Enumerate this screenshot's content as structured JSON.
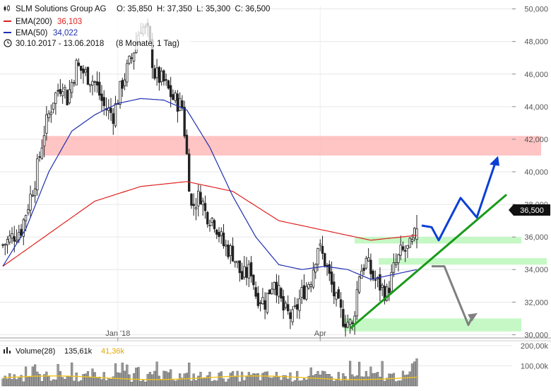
{
  "header": {
    "title": "SLM Solutions Group AG",
    "ohlc": "O: 35,850  H: 37,350  L: 35,300  C: 36,500",
    "ema200_label": "EMA(200)",
    "ema200_value": "36,103",
    "ema50_label": "EMA(50)",
    "ema50_value": "34,022",
    "range_label": "30.10.2017 - 13.06.2018",
    "range_detail": "(8 Monate, 1 Tag)"
  },
  "volume_legend": {
    "label": "Volume(28)",
    "value": "135,61k",
    "ma_value": "41,36k"
  },
  "price_badge": "36,500",
  "colors": {
    "candle": "#222222",
    "ema200": "#e02020",
    "ema50": "#1f2fb0",
    "resistance_zone": "#ffb0b0",
    "support_zone": "#b2f5b2",
    "trend_line": "#1a9a1a",
    "bull_path": "#0a3fd6",
    "bear_path": "#808080",
    "volume_bar": "#9a9a9a",
    "volume_ma": "#f1c21b"
  },
  "chart_data": {
    "type": "candlestick",
    "title": "SLM Solutions Group AG",
    "x_ticks": [
      "Jan '18",
      "Apr"
    ],
    "y_ticks": [
      "30,000",
      "32,000",
      "34,000",
      "36,000",
      "38,000",
      "40,000",
      "42,000",
      "44,000",
      "46,000",
      "48,000",
      "50,000"
    ],
    "volume_ticks": [
      "200,00k",
      "100,00k"
    ],
    "ylim": [
      29.8,
      50.2
    ],
    "period": "30.10.2017 - 13.06.2018",
    "last_close": 36.5,
    "close_path": [
      [
        0,
        35.5
      ],
      [
        8,
        36.5
      ],
      [
        14,
        39.5
      ],
      [
        18,
        42.5
      ],
      [
        22,
        44.5
      ],
      [
        26,
        45.5
      ],
      [
        28,
        44.5
      ],
      [
        32,
        46.5
      ],
      [
        36,
        46.0
      ],
      [
        40,
        45.5
      ],
      [
        44,
        44.0
      ],
      [
        48,
        43.5
      ],
      [
        52,
        45.5
      ],
      [
        56,
        47.0
      ],
      [
        60,
        49.0
      ],
      [
        63,
        48.5
      ],
      [
        66,
        46.0
      ],
      [
        70,
        45.5
      ],
      [
        74,
        44.5
      ],
      [
        78,
        44.0
      ],
      [
        80,
        41.0
      ],
      [
        82,
        37.8
      ],
      [
        86,
        38.6
      ],
      [
        88,
        37.5
      ],
      [
        92,
        37.0
      ],
      [
        96,
        35.5
      ],
      [
        100,
        35.0
      ],
      [
        104,
        33.5
      ],
      [
        108,
        34.0
      ],
      [
        110,
        32.5
      ],
      [
        114,
        32.0
      ],
      [
        118,
        33.5
      ],
      [
        122,
        31.5
      ],
      [
        126,
        31.0
      ],
      [
        130,
        32.5
      ],
      [
        134,
        33.5
      ],
      [
        137,
        35.5
      ],
      [
        140,
        34.5
      ],
      [
        142,
        33.5
      ],
      [
        145,
        32.0
      ],
      [
        148,
        31.0
      ],
      [
        150,
        30.8
      ],
      [
        152,
        30.5
      ],
      [
        155,
        33.8
      ],
      [
        158,
        34.5
      ],
      [
        161,
        33.5
      ],
      [
        164,
        33.0
      ],
      [
        167,
        32.5
      ],
      [
        170,
        34.0
      ],
      [
        173,
        35.0
      ],
      [
        176,
        35.2
      ],
      [
        178,
        35.5
      ],
      [
        180,
        36.5
      ]
    ],
    "ema200_path": [
      [
        0,
        34.2
      ],
      [
        20,
        36.2
      ],
      [
        40,
        38.2
      ],
      [
        60,
        39.1
      ],
      [
        80,
        39.4
      ],
      [
        100,
        38.8
      ],
      [
        120,
        37.0
      ],
      [
        140,
        36.4
      ],
      [
        160,
        35.8
      ],
      [
        180,
        36.1
      ]
    ],
    "ema50_path": [
      [
        0,
        34.2
      ],
      [
        10,
        36.5
      ],
      [
        20,
        40.0
      ],
      [
        30,
        42.5
      ],
      [
        40,
        43.5
      ],
      [
        50,
        44.2
      ],
      [
        60,
        44.5
      ],
      [
        70,
        44.4
      ],
      [
        80,
        43.8
      ],
      [
        90,
        41.5
      ],
      [
        100,
        38.5
      ],
      [
        110,
        36.0
      ],
      [
        120,
        34.3
      ],
      [
        130,
        34.0
      ],
      [
        140,
        34.2
      ],
      [
        150,
        34.0
      ],
      [
        160,
        33.4
      ],
      [
        170,
        33.7
      ],
      [
        180,
        34.0
      ]
    ],
    "resistance_zone": [
      41.0,
      42.2
    ],
    "support_zones": [
      [
        35.6,
        36.0
      ],
      [
        34.3,
        34.7
      ],
      [
        30.2,
        31.0
      ]
    ],
    "projection_bullish": [
      36.7,
      35.8,
      38.4,
      37.2,
      40.8
    ],
    "projection_bearish": [
      34.2,
      34.2,
      30.6,
      31.2
    ]
  }
}
